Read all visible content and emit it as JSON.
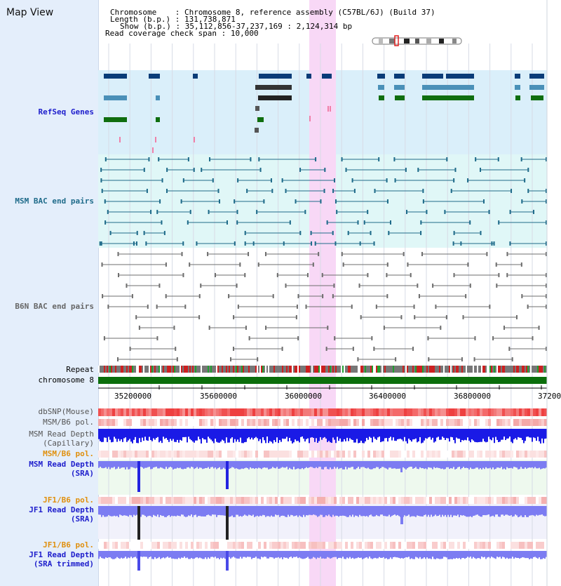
{
  "title": "Map View",
  "info": {
    "chromosome_label": "Chromosome",
    "chromosome_value": "Chromosome 8, reference assembly (C57BL/6J) (Build 37)",
    "length_label": "Length (b.p.)",
    "length_value": "131,738,871",
    "show_label": "Show (b.p.)",
    "show_value": "35,112,856-37,237,169 : 2,124,314 bp",
    "coverage_label": "Read coverage check span",
    "coverage_value": "10,000"
  },
  "tracks": {
    "refseq": "RefSeq Genes",
    "msm_bac": "MSM BAC end pairs",
    "b6n_bac": "B6N BAC end pairs",
    "repeat": "Repeat",
    "chromosome": "chromosome 8",
    "dbsnp": "dbSNP(Mouse)",
    "msm_b6_pol": "MSM/B6 pol.",
    "msm_depth_cap_1": "MSM Read Depth",
    "msm_depth_cap_2": "(Capillary)",
    "msm_b6_pol2": "MSM/B6 pol.",
    "msm_depth_sra_1": "MSM Read Depth",
    "msm_depth_sra_2": "(SRA)",
    "jf1_b6_pol": "JF1/B6 pol.",
    "jf1_depth_sra_1": "JF1 Read Depth",
    "jf1_depth_sra_2": "(SRA)",
    "jf1_b6_pol2": "JF1/B6 pol.",
    "jf1_depth_trim_1": "JF1 Read Depth",
    "jf1_depth_trim_2": "(SRA trimmed)"
  },
  "axis": {
    "ticks": [
      "35200000",
      "35600000",
      "36000000",
      "36400000",
      "36800000",
      "37200000"
    ]
  },
  "colors": {
    "highlight": "#f8d8f6",
    "refseq_bg": "#daeffa",
    "msm_bac_bg": "#e0f7f7",
    "gene_dark": "#0a3c78",
    "gene_mid": "#4a90b8",
    "gene_green": "#0f6e0f",
    "msm_bac": "#1f6b8a",
    "b6n_bac": "#6e6e6e",
    "chromosome": "#0b6e0b",
    "dbsnp": "#f05050",
    "capillary_depth": "#1a1ae6",
    "sra_depth": "#7c7cf2",
    "label_blue": "#1e1ecc",
    "label_teal": "#1f6b8a",
    "label_orange": "#e0900e"
  }
}
